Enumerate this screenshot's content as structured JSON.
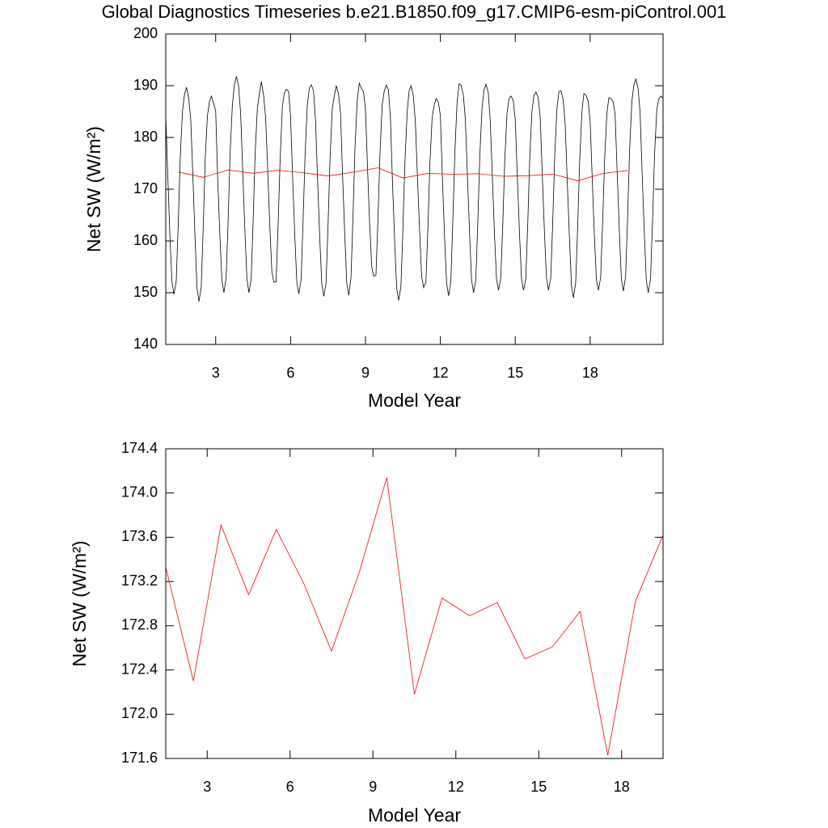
{
  "chart_data": [
    {
      "type": "line",
      "title": "Global Diagnostics Timeseries b.e21.B1850.f09_g17.CMIP6-esm-piControl.001",
      "x_label": "Model Year",
      "y_label": "Net SW (W/m²)",
      "xlim": [
        1,
        20.92
      ],
      "xticks": [
        3,
        6,
        9,
        12,
        15,
        18
      ],
      "ylim": [
        140,
        200
      ],
      "yticks": [
        140,
        150,
        160,
        170,
        180,
        190,
        200
      ],
      "grid": false,
      "series": [
        {
          "color": "#000000",
          "x": [
            1,
            1.08,
            1.17,
            1.25,
            1.33,
            1.42,
            1.5,
            1.58,
            1.67,
            1.75,
            1.83,
            1.92,
            2,
            2.08,
            2.17,
            2.25,
            2.33,
            2.42,
            2.5,
            2.58,
            2.67,
            2.75,
            2.83,
            2.92,
            3,
            3.08,
            3.17,
            3.25,
            3.33,
            3.42,
            3.5,
            3.58,
            3.67,
            3.75,
            3.83,
            3.92,
            4,
            4.08,
            4.17,
            4.25,
            4.33,
            4.42,
            4.5,
            4.58,
            4.67,
            4.75,
            4.83,
            4.92,
            5,
            5.08,
            5.17,
            5.25,
            5.33,
            5.42,
            5.5,
            5.58,
            5.67,
            5.75,
            5.83,
            5.92,
            6,
            6.08,
            6.17,
            6.25,
            6.33,
            6.42,
            6.5,
            6.58,
            6.67,
            6.75,
            6.83,
            6.92,
            7,
            7.08,
            7.17,
            7.25,
            7.33,
            7.42,
            7.5,
            7.58,
            7.67,
            7.75,
            7.83,
            7.92,
            8,
            8.08,
            8.17,
            8.25,
            8.33,
            8.42,
            8.5,
            8.58,
            8.67,
            8.75,
            8.83,
            8.92,
            9,
            9.08,
            9.17,
            9.25,
            9.33,
            9.42,
            9.5,
            9.58,
            9.67,
            9.75,
            9.83,
            9.92,
            10,
            10.08,
            10.17,
            10.25,
            10.33,
            10.42,
            10.5,
            10.58,
            10.67,
            10.75,
            10.83,
            10.92,
            11,
            11.08,
            11.17,
            11.25,
            11.33,
            11.42,
            11.5,
            11.58,
            11.67,
            11.75,
            11.83,
            11.92,
            12,
            12.08,
            12.17,
            12.25,
            12.33,
            12.42,
            12.5,
            12.58,
            12.67,
            12.75,
            12.83,
            12.92,
            13,
            13.08,
            13.17,
            13.25,
            13.33,
            13.42,
            13.5,
            13.58,
            13.67,
            13.75,
            13.83,
            13.92,
            14,
            14.08,
            14.17,
            14.25,
            14.33,
            14.42,
            14.5,
            14.58,
            14.67,
            14.75,
            14.83,
            14.92,
            15,
            15.08,
            15.17,
            15.25,
            15.33,
            15.42,
            15.5,
            15.58,
            15.67,
            15.75,
            15.83,
            15.92,
            16,
            16.08,
            16.17,
            16.25,
            16.33,
            16.42,
            16.5,
            16.58,
            16.67,
            16.75,
            16.83,
            16.92,
            17,
            17.08,
            17.17,
            17.25,
            17.33,
            17.42,
            17.5,
            17.58,
            17.67,
            17.75,
            17.83,
            17.92,
            18,
            18.08,
            18.17,
            18.25,
            18.33,
            18.42,
            18.5,
            18.58,
            18.67,
            18.75,
            18.83,
            18.92,
            19,
            19.08,
            19.17,
            19.25,
            19.33,
            19.42,
            19.5,
            19.58,
            19.67,
            19.75,
            19.83,
            19.92,
            20,
            20.08,
            20.17,
            20.25,
            20.33,
            20.42,
            20.5,
            20.58,
            20.67,
            20.75,
            20.83,
            20.92
          ],
          "values": [
            184.2,
            172.8,
            160.5,
            152.1,
            149.7,
            152.3,
            163.4,
            176.2,
            185.1,
            188.3,
            189.7,
            187.6,
            183.5,
            173.4,
            161.2,
            151.0,
            148.3,
            151.1,
            162.5,
            175.8,
            184.2,
            186.9,
            188.0,
            186.5,
            185.1,
            172.0,
            160.8,
            152.4,
            150.0,
            153.0,
            164.1,
            177.3,
            186.4,
            190.2,
            191.8,
            189.9,
            184.6,
            173.9,
            162.0,
            152.8,
            150.0,
            152.6,
            163.8,
            176.9,
            185.7,
            188.4,
            190.8,
            188.1,
            183.9,
            174.2,
            162.7,
            154.1,
            152.0,
            152.1,
            163.0,
            175.5,
            185.9,
            188.6,
            189.3,
            188.9,
            184.0,
            172.5,
            160.9,
            152.0,
            149.8,
            152.4,
            163.9,
            176.4,
            186.2,
            189.5,
            190.2,
            189.0,
            183.2,
            172.1,
            160.4,
            151.7,
            149.3,
            151.8,
            162.9,
            175.9,
            185.5,
            188.0,
            190.0,
            188.4,
            184.8,
            173.0,
            161.3,
            151.9,
            149.5,
            152.9,
            164.6,
            178.0,
            187.1,
            190.5,
            189.6,
            188.8,
            185.5,
            174.4,
            163.0,
            155.0,
            153.2,
            153.4,
            164.2,
            176.8,
            186.3,
            188.9,
            190.1,
            189.2,
            183.7,
            171.6,
            159.8,
            150.9,
            148.5,
            151.2,
            162.4,
            175.2,
            184.9,
            189.1,
            190.0,
            187.9,
            182.9,
            172.6,
            161.8,
            153.2,
            151.0,
            152.0,
            162.2,
            174.9,
            183.8,
            186.2,
            187.5,
            186.8,
            184.3,
            172.3,
            160.6,
            151.8,
            149.4,
            152.2,
            164.0,
            177.1,
            186.8,
            190.4,
            190.1,
            188.2,
            183.6,
            173.1,
            161.5,
            152.4,
            150.0,
            152.5,
            163.6,
            176.5,
            185.8,
            189.2,
            190.3,
            188.6,
            183.0,
            172.7,
            161.1,
            152.6,
            150.5,
            152.8,
            163.1,
            175.6,
            184.7,
            187.5,
            188.0,
            187.2,
            183.4,
            172.9,
            161.4,
            152.7,
            150.5,
            152.6,
            163.3,
            176.0,
            185.2,
            188.1,
            188.8,
            187.7,
            183.8,
            173.2,
            161.6,
            152.9,
            150.5,
            152.7,
            163.5,
            176.3,
            185.6,
            188.9,
            189.0,
            187.3,
            182.6,
            171.9,
            160.7,
            151.5,
            149.0,
            151.9,
            162.7,
            175.4,
            185.0,
            188.5,
            188.2,
            187.0,
            183.1,
            172.4,
            161.0,
            152.5,
            150.5,
            152.9,
            163.7,
            175.7,
            184.6,
            187.7,
            187.5,
            186.9,
            184.5,
            173.6,
            161.9,
            152.6,
            150.3,
            153.1,
            164.5,
            177.6,
            186.9,
            190.1,
            191.3,
            189.5,
            184.9,
            173.3,
            161.7,
            152.3,
            150.0,
            152.8,
            163.9,
            176.7,
            185.4,
            187.4,
            188.0,
            187.6
          ]
        },
        {
          "color": "#ff0000",
          "x": [
            1.5,
            2.5,
            3.5,
            4.5,
            5.5,
            6.5,
            7.5,
            8.5,
            9.5,
            10.5,
            11.5,
            12.5,
            13.5,
            14.5,
            15.5,
            16.5,
            17.5,
            18.5,
            19.5
          ],
          "values": [
            173.33,
            172.3,
            173.71,
            173.08,
            173.67,
            173.18,
            172.57,
            173.28,
            174.14,
            172.18,
            173.05,
            172.89,
            173.01,
            172.5,
            172.61,
            172.93,
            171.63,
            173.02,
            173.62
          ]
        }
      ]
    },
    {
      "type": "line",
      "x_label": "Model Year",
      "y_label": "Net SW (W/m²)",
      "xlim": [
        1.5,
        19.5
      ],
      "xticks": [
        3,
        6,
        9,
        12,
        15,
        18
      ],
      "ylim": [
        171.6,
        174.4
      ],
      "yticks": [
        171.6,
        {
          "value": 172,
          "label": "172.0"
        },
        172.4,
        172.8,
        173.2,
        173.6,
        {
          "value": 174,
          "label": "174.0"
        },
        174.4
      ],
      "grid": false,
      "series": [
        {
          "color": "#ff0000",
          "x": [
            1.5,
            2.5,
            3.5,
            4.5,
            5.5,
            6.5,
            7.5,
            8.5,
            9.5,
            10.5,
            11.5,
            12.5,
            13.5,
            14.5,
            15.5,
            16.5,
            17.5,
            18.5,
            19.5
          ],
          "values": [
            173.33,
            172.3,
            173.71,
            173.08,
            173.67,
            173.18,
            172.57,
            173.28,
            174.14,
            172.18,
            173.05,
            172.89,
            173.01,
            172.5,
            172.61,
            172.93,
            171.63,
            173.02,
            173.62
          ]
        }
      ]
    }
  ]
}
